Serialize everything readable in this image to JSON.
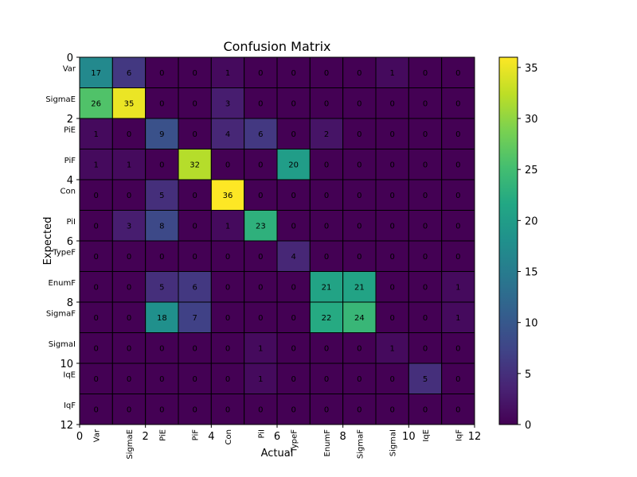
{
  "chart_data": {
    "type": "heatmap",
    "title": "Confusion Matrix",
    "xlabel": "Actual",
    "ylabel": "Expected",
    "categories": [
      "Var",
      "SigmaE",
      "PiE",
      "PiF",
      "Con",
      "PiI",
      "TypeF",
      "EnumF",
      "SigmaF",
      "SigmaI",
      "IqE",
      "IqF"
    ],
    "matrix": [
      [
        17,
        6,
        0,
        0,
        1,
        0,
        0,
        0,
        0,
        1,
        0,
        0
      ],
      [
        26,
        35,
        0,
        0,
        3,
        0,
        0,
        0,
        0,
        0,
        0,
        0
      ],
      [
        1,
        0,
        9,
        0,
        4,
        6,
        0,
        2,
        0,
        0,
        0,
        0
      ],
      [
        1,
        1,
        0,
        32,
        0,
        0,
        20,
        0,
        0,
        0,
        0,
        0
      ],
      [
        0,
        0,
        5,
        0,
        36,
        0,
        0,
        0,
        0,
        0,
        0,
        0
      ],
      [
        0,
        3,
        8,
        0,
        1,
        23,
        0,
        0,
        0,
        0,
        0,
        0
      ],
      [
        0,
        0,
        0,
        0,
        0,
        0,
        4,
        0,
        0,
        0,
        0,
        0
      ],
      [
        0,
        0,
        5,
        6,
        0,
        0,
        0,
        21,
        21,
        0,
        0,
        1
      ],
      [
        0,
        0,
        18,
        7,
        0,
        0,
        0,
        22,
        24,
        0,
        0,
        1
      ],
      [
        0,
        0,
        0,
        0,
        0,
        1,
        0,
        0,
        0,
        1,
        0,
        0
      ],
      [
        0,
        0,
        0,
        0,
        0,
        1,
        0,
        0,
        0,
        0,
        5,
        0
      ],
      [
        0,
        0,
        0,
        0,
        0,
        0,
        0,
        0,
        0,
        0,
        0,
        0
      ]
    ],
    "x_ticks": [
      0,
      2,
      4,
      6,
      8,
      10,
      12
    ],
    "y_ticks": [
      0,
      2,
      4,
      6,
      8,
      10,
      12
    ],
    "xlim": [
      0,
      12
    ],
    "ylim": [
      0,
      12
    ],
    "colorbar": {
      "colormap": "viridis",
      "min": 0,
      "max": 36,
      "ticks": [
        0,
        5,
        10,
        15,
        20,
        25,
        30,
        35
      ]
    },
    "grid": false
  }
}
